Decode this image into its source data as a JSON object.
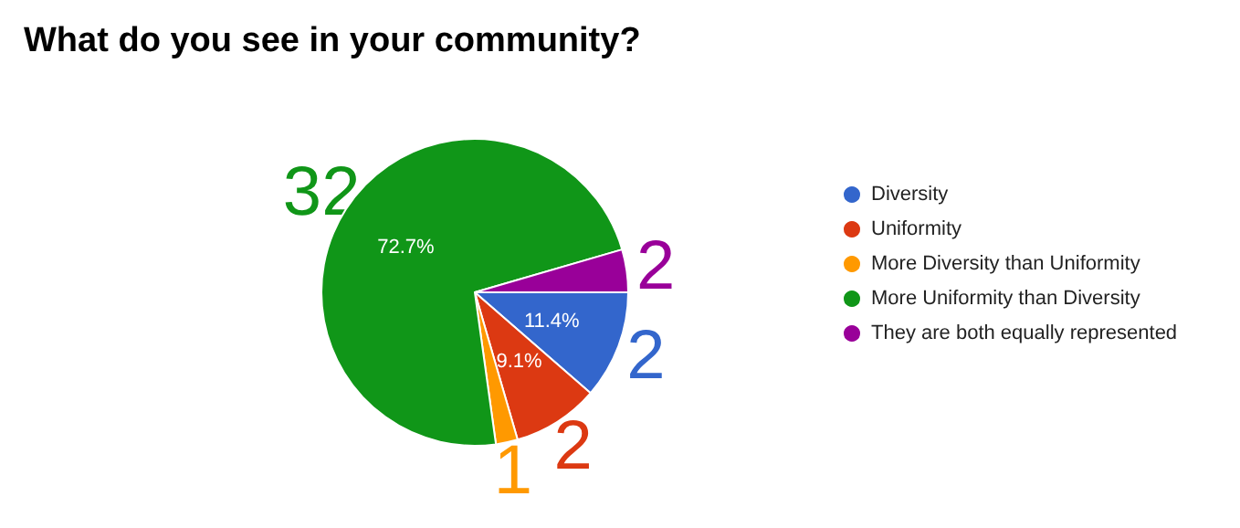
{
  "chart_data": {
    "type": "pie",
    "title": "What do you see in your community?",
    "categories": [
      "Diversity",
      "Uniformity",
      "More Diversity than Uniformity",
      "More Uniformity than Diversity",
      "They are both equally represented"
    ],
    "values": [
      11.4,
      9.1,
      2.3,
      72.7,
      4.5
    ],
    "colors": [
      "#3366cc",
      "#dc3912",
      "#ff9900",
      "#109618",
      "#990099"
    ],
    "value_labels": [
      "11.4%",
      "9.1%",
      null,
      "72.7%",
      null
    ],
    "legend": "right",
    "annotations": [
      {
        "text": "2",
        "x": "Diversity"
      },
      {
        "text": "2",
        "x": "Uniformity"
      },
      {
        "text": "1",
        "x": "More Diversity than Uniformity"
      },
      {
        "text": "32",
        "x": "More Uniformity than Diversity"
      },
      {
        "text": "2",
        "x": "They are both equally represented"
      }
    ]
  }
}
